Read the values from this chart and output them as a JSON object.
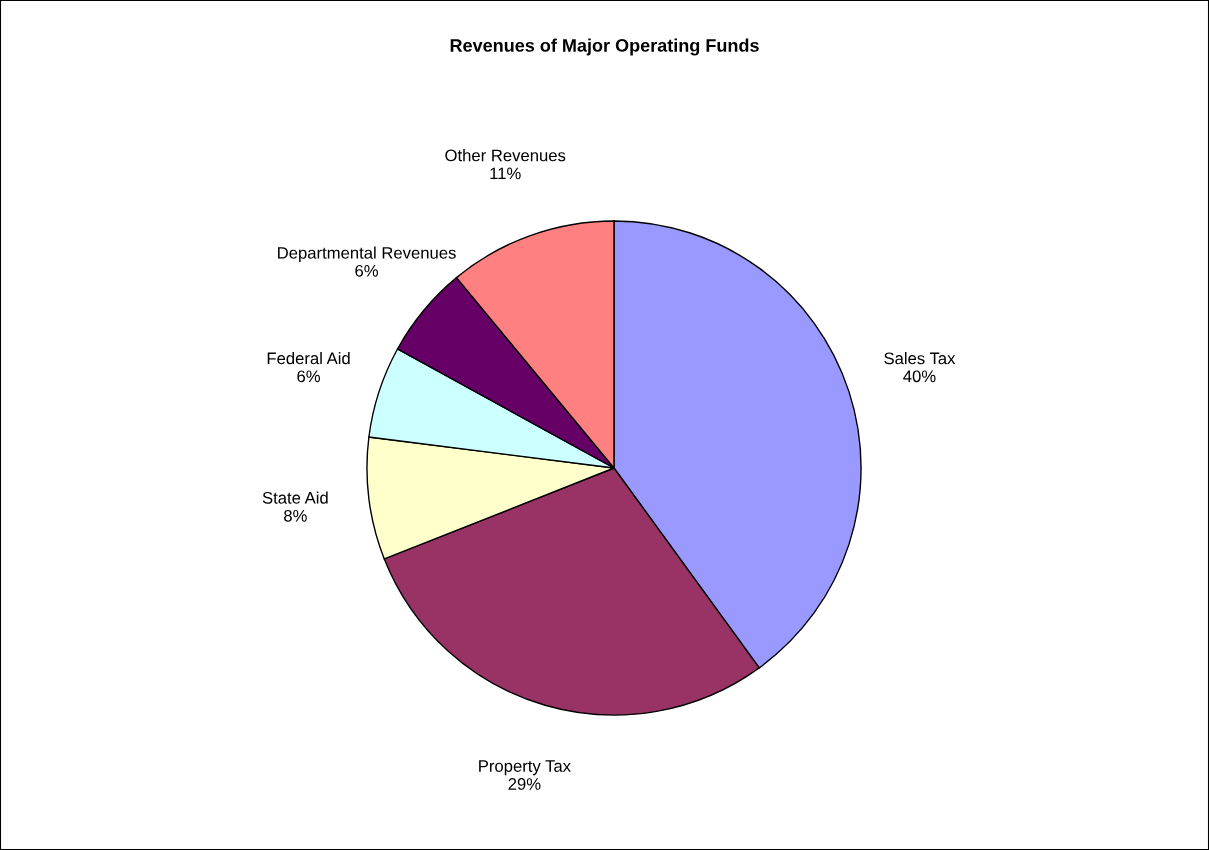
{
  "chart_data": {
    "type": "pie",
    "title": "Revenues of Major Operating Funds",
    "categories": [
      "Sales Tax",
      "Property Tax",
      "State Aid",
      "Federal Aid",
      "Departmental Revenues",
      "Other Revenues"
    ],
    "values": [
      40,
      29,
      8,
      6,
      6,
      11
    ],
    "value_labels": [
      "40%",
      "29%",
      "8%",
      "6%",
      "6%",
      "11%"
    ],
    "colors": [
      "#9999ff",
      "#993366",
      "#ffffcc",
      "#ccffff",
      "#660066",
      "#ff8080"
    ],
    "legend": false
  }
}
